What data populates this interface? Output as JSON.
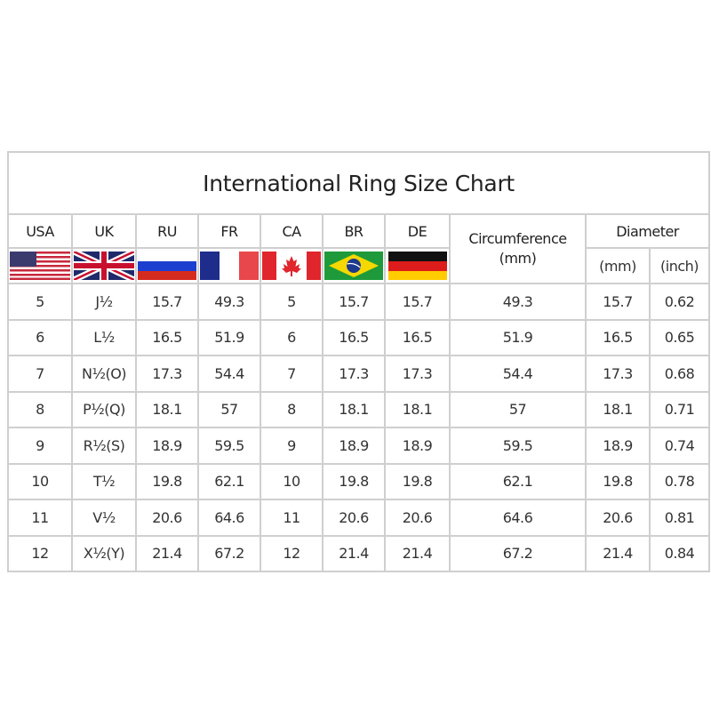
{
  "title": "International Ring Size Chart",
  "headers": {
    "countries": [
      "USA",
      "UK",
      "RU",
      "FR",
      "CA",
      "BR",
      "DE"
    ],
    "circumference": "Circumference",
    "circumference_unit": "(mm)",
    "diameter": "Diameter",
    "diameter_mm": "(mm)",
    "diameter_inch": "(inch)"
  },
  "flags": [
    "us-flag-icon",
    "uk-flag-icon",
    "russia-flag-icon",
    "france-flag-icon",
    "canada-flag-icon",
    "brazil-flag-icon",
    "germany-flag-icon"
  ],
  "rows": [
    [
      "5",
      "J½",
      "15.7",
      "49.3",
      "5",
      "15.7",
      "15.7",
      "49.3",
      "15.7",
      "0.62"
    ],
    [
      "6",
      "L½",
      "16.5",
      "51.9",
      "6",
      "16.5",
      "16.5",
      "51.9",
      "16.5",
      "0.65"
    ],
    [
      "7",
      "N½(O)",
      "17.3",
      "54.4",
      "7",
      "17.3",
      "17.3",
      "54.4",
      "17.3",
      "0.68"
    ],
    [
      "8",
      "P½(Q)",
      "18.1",
      "57",
      "8",
      "18.1",
      "18.1",
      "57",
      "18.1",
      "0.71"
    ],
    [
      "9",
      "R½(S)",
      "18.9",
      "59.5",
      "9",
      "18.9",
      "18.9",
      "59.5",
      "18.9",
      "0.74"
    ],
    [
      "10",
      "T½",
      "19.8",
      "62.1",
      "10",
      "19.8",
      "19.8",
      "62.1",
      "19.8",
      "0.78"
    ],
    [
      "11",
      "V½",
      "20.6",
      "64.6",
      "11",
      "20.6",
      "20.6",
      "64.6",
      "20.6",
      "0.81"
    ],
    [
      "12",
      "X½(Y)",
      "21.4",
      "67.2",
      "12",
      "21.4",
      "21.4",
      "67.2",
      "21.4",
      "0.84"
    ]
  ],
  "chart_data": {
    "type": "table",
    "title": "International Ring Size Chart",
    "columns": [
      "USA",
      "UK",
      "RU",
      "FR",
      "CA",
      "BR",
      "DE",
      "Circumference (mm)",
      "Diameter (mm)",
      "Diameter (inch)"
    ],
    "rows": [
      [
        "5",
        "J½",
        "15.7",
        "49.3",
        "5",
        "15.7",
        "15.7",
        "49.3",
        "15.7",
        "0.62"
      ],
      [
        "6",
        "L½",
        "16.5",
        "51.9",
        "6",
        "16.5",
        "16.5",
        "51.9",
        "16.5",
        "0.65"
      ],
      [
        "7",
        "N½(O)",
        "17.3",
        "54.4",
        "7",
        "17.3",
        "17.3",
        "54.4",
        "17.3",
        "0.68"
      ],
      [
        "8",
        "P½(Q)",
        "18.1",
        "57",
        "8",
        "18.1",
        "18.1",
        "57",
        "18.1",
        "0.71"
      ],
      [
        "9",
        "R½(S)",
        "18.9",
        "59.5",
        "9",
        "18.9",
        "18.9",
        "59.5",
        "18.9",
        "0.74"
      ],
      [
        "10",
        "T½",
        "19.8",
        "62.1",
        "10",
        "19.8",
        "19.8",
        "62.1",
        "19.8",
        "0.78"
      ],
      [
        "11",
        "V½",
        "20.6",
        "64.6",
        "11",
        "20.6",
        "20.6",
        "64.6",
        "20.6",
        "0.81"
      ],
      [
        "12",
        "X½(Y)",
        "21.4",
        "67.2",
        "12",
        "21.4",
        "21.4",
        "67.2",
        "21.4",
        "0.84"
      ]
    ]
  }
}
